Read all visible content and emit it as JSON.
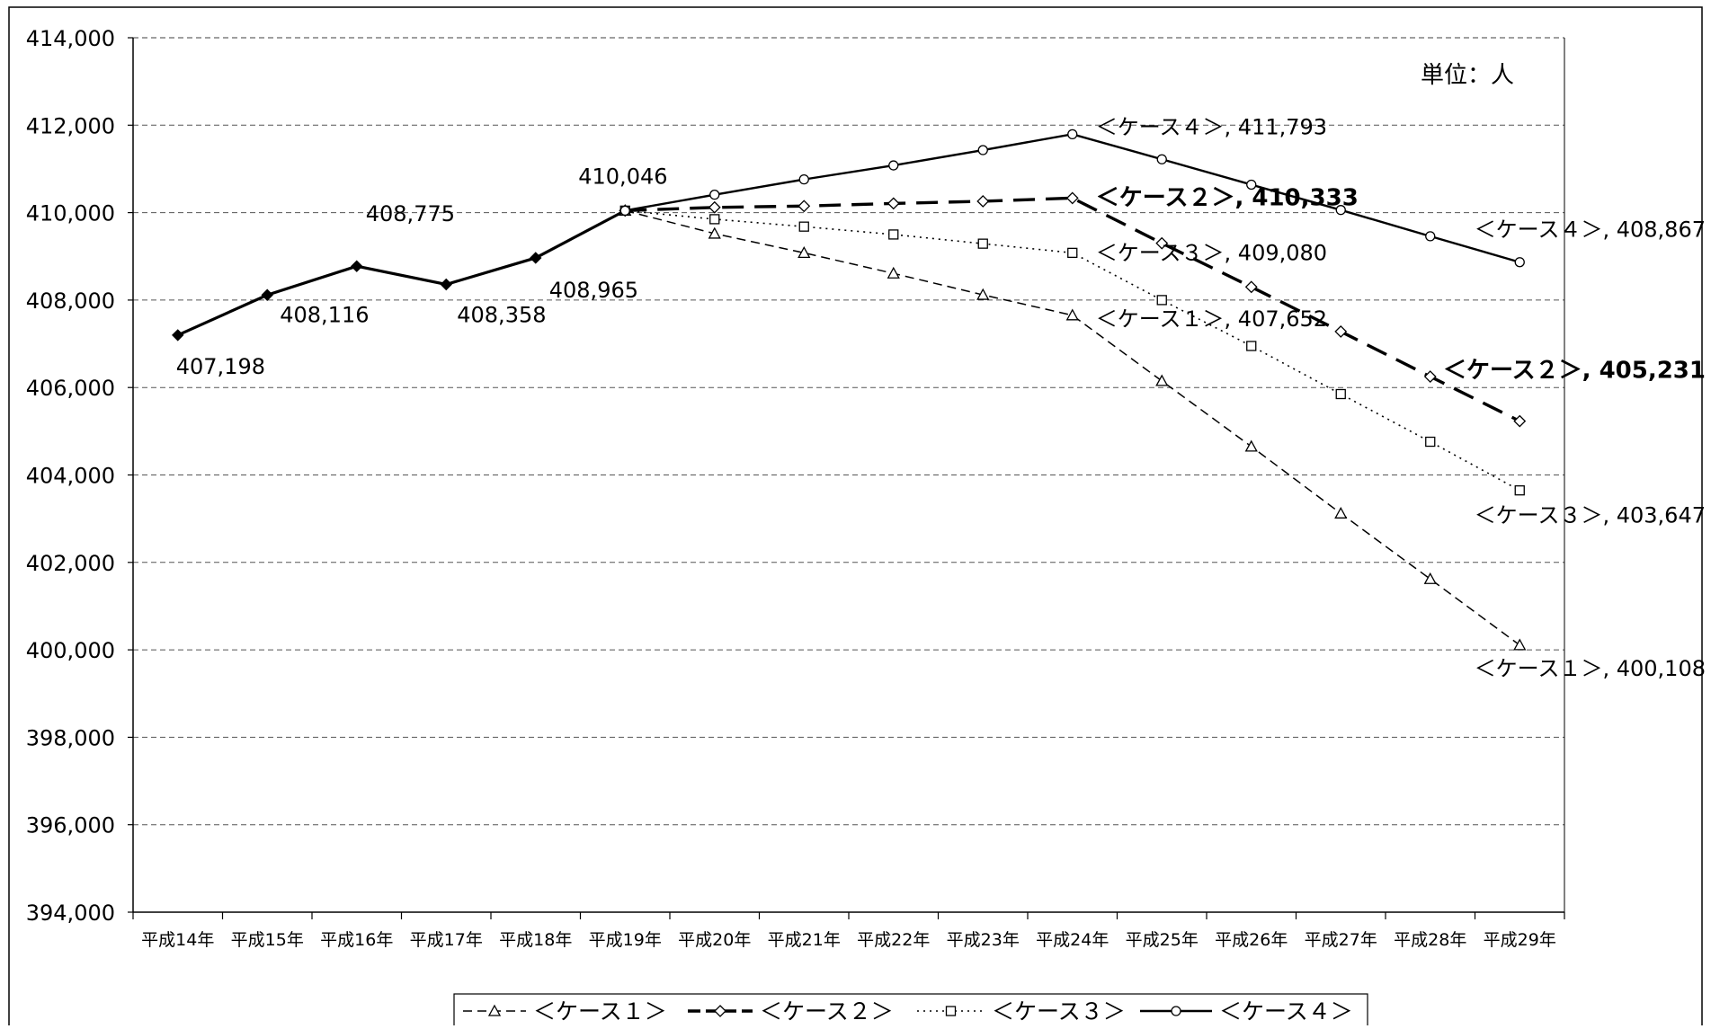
{
  "chart_data": {
    "type": "line",
    "unit_label": "単位：人",
    "categories": [
      "平成14年",
      "平成15年",
      "平成16年",
      "平成17年",
      "平成18年",
      "平成19年",
      "平成20年",
      "平成21年",
      "平成22年",
      "平成23年",
      "平成24年",
      "平成25年",
      "平成26年",
      "平成27年",
      "平成28年",
      "平成29年"
    ],
    "y_ticks": [
      "414,000",
      "412,000",
      "410,000",
      "408,000",
      "406,000",
      "404,000",
      "402,000",
      "400,000",
      "398,000",
      "396,000",
      "394,000"
    ],
    "ylim": [
      394000,
      414000
    ],
    "grid": "horizontal dashed",
    "legend_position": "bottom",
    "actual": {
      "values": [
        407198,
        408116,
        408775,
        408358,
        408965,
        410046
      ],
      "labels": [
        "407,198",
        "408,116",
        "408,775",
        "408,358",
        "408,965",
        "410,046"
      ]
    },
    "series": [
      {
        "name": "＜ケース１＞",
        "style": "thin-dashed-triangle",
        "values": [
          null,
          null,
          null,
          null,
          null,
          410046,
          409520,
          409080,
          408610,
          408120,
          407652,
          406150,
          404650,
          403120,
          401620,
          400108
        ]
      },
      {
        "name": "＜ケース２＞",
        "style": "thick-dashed-diamond",
        "values": [
          null,
          null,
          null,
          null,
          null,
          410046,
          410120,
          410150,
          410210,
          410260,
          410333,
          409300,
          408300,
          407280,
          406250,
          405231
        ]
      },
      {
        "name": "＜ケース３＞",
        "style": "dotted-square",
        "values": [
          null,
          null,
          null,
          null,
          null,
          410046,
          409850,
          409680,
          409500,
          409290,
          409080,
          408000,
          406950,
          405850,
          404760,
          403647
        ]
      },
      {
        "name": "＜ケース４＞",
        "style": "solid-circle",
        "values": [
          null,
          null,
          null,
          null,
          null,
          410046,
          410410,
          410760,
          411080,
          411430,
          411793,
          411220,
          410640,
          410060,
          409460,
          408867
        ]
      }
    ],
    "annotations": [
      {
        "text": "＜ケース４＞, 411,793",
        "series": 3,
        "point": 10
      },
      {
        "text": "＜ケース２＞, 410,333",
        "series": 1,
        "point": 10,
        "bold": true
      },
      {
        "text": "＜ケース３＞, 409,080",
        "series": 2,
        "point": 10
      },
      {
        "text": "＜ケース１＞, 407,652",
        "series": 0,
        "point": 10
      },
      {
        "text": "＜ケース４＞, 408,867",
        "series": 3,
        "point": 15
      },
      {
        "text": "＜ケース２＞, 405,231",
        "series": 1,
        "point": 15,
        "bold": true
      },
      {
        "text": "＜ケース３＞, 403,647",
        "series": 2,
        "point": 15
      },
      {
        "text": "＜ケース１＞, 400,108",
        "series": 0,
        "point": 15
      }
    ],
    "legend": [
      "＜ケース１＞",
      "＜ケース２＞",
      "＜ケース３＞",
      "＜ケース４＞"
    ]
  }
}
